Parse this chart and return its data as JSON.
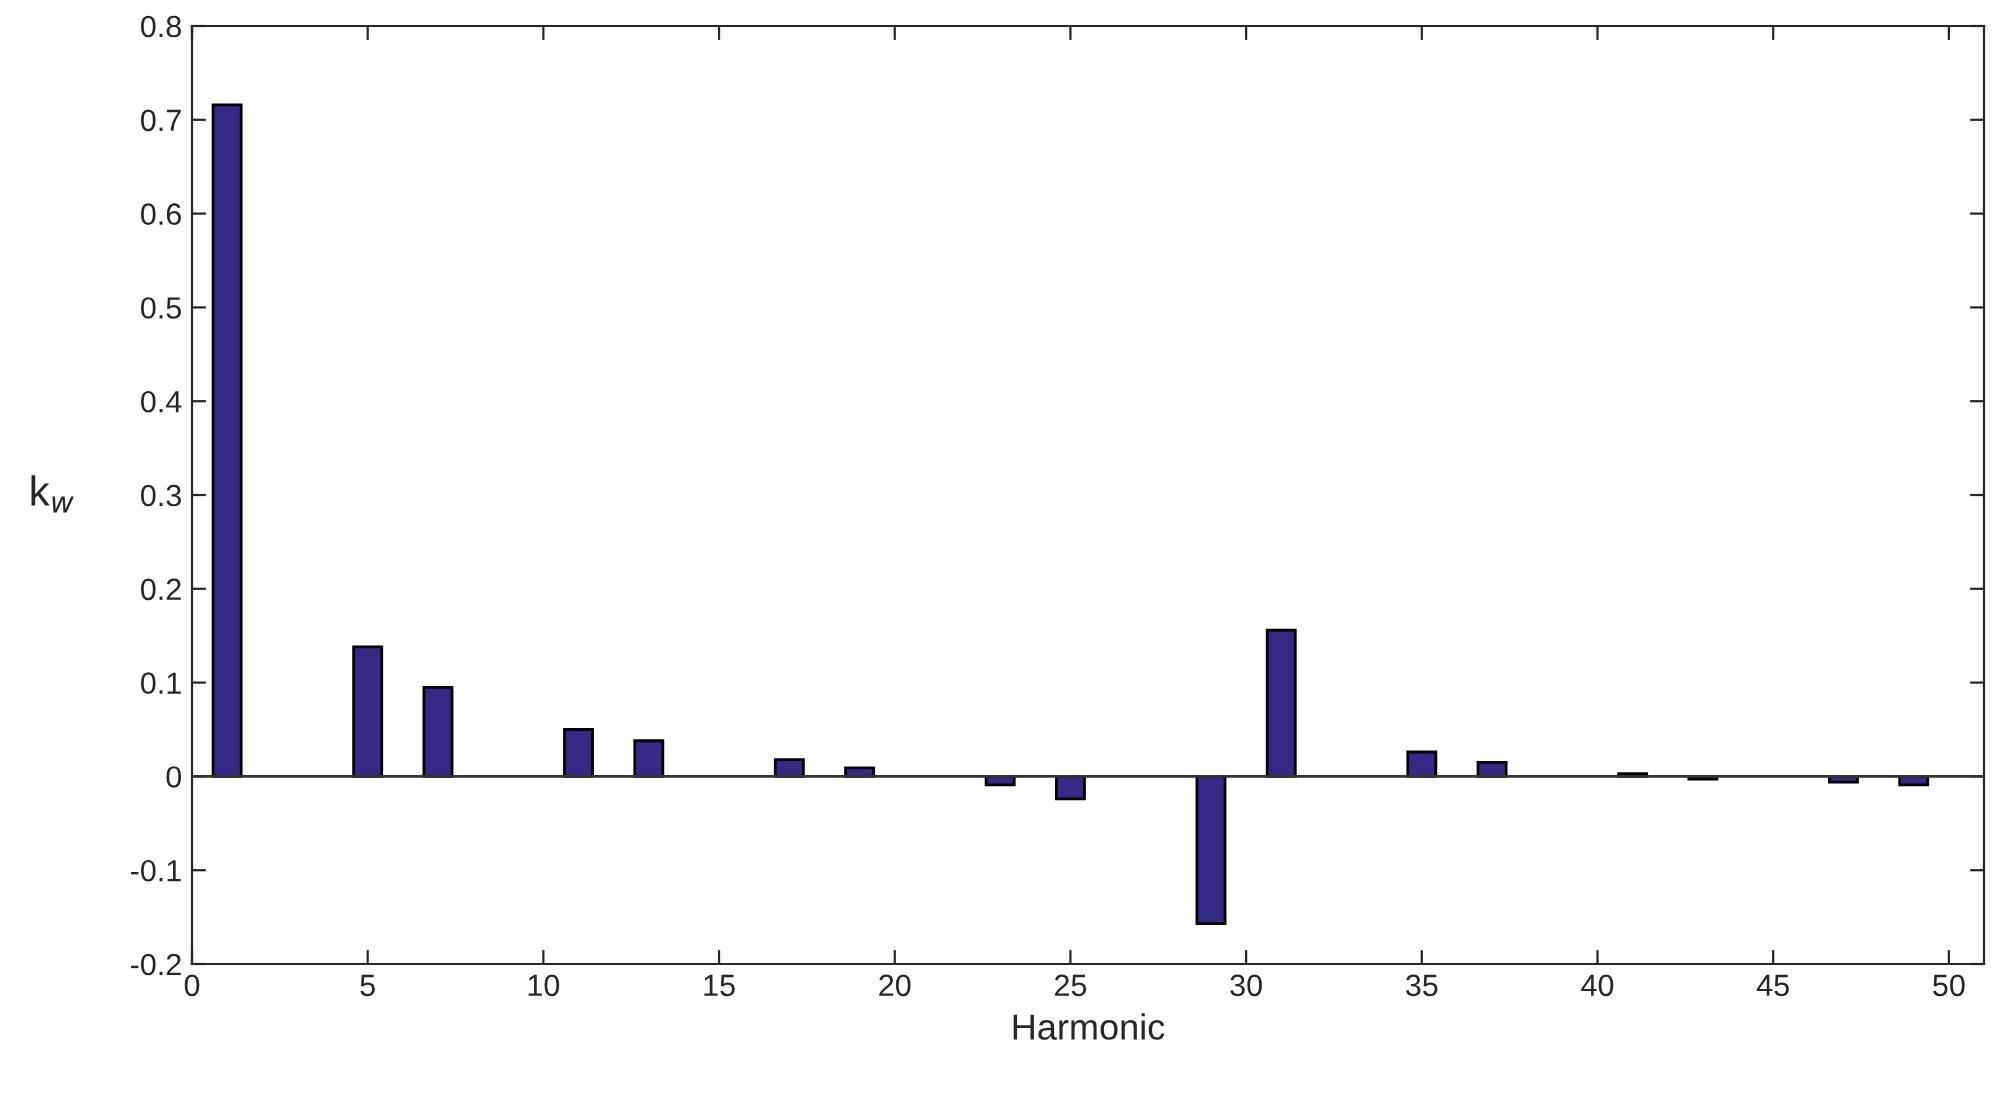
{
  "chart_data": {
    "type": "bar",
    "xlabel": "Harmonic",
    "ylabel": "k$_{w}$",
    "x": [
      1,
      5,
      7,
      11,
      13,
      17,
      19,
      23,
      25,
      29,
      31,
      35,
      37,
      41,
      43,
      47,
      49
    ],
    "series": [
      {
        "color": "#332a86",
        "values": [
          0.716,
          0.138,
          0.095,
          0.05,
          0.038,
          0.018,
          0.009,
          -0.009,
          -0.024,
          -0.157,
          0.156,
          0.026,
          0.015,
          0.003,
          -0.003,
          -0.006,
          -0.009
        ]
      }
    ],
    "xlim": [
      0,
      51
    ],
    "xticks": [
      0,
      5,
      10,
      15,
      20,
      25,
      30,
      35,
      40,
      45,
      50
    ],
    "ylim": [
      -0.2,
      0.8
    ],
    "yticks": [
      -0.2,
      -0.1,
      0,
      0.1,
      0.2,
      0.3,
      0.4,
      0.5,
      0.6,
      0.7,
      0.8
    ],
    "ref_lines": [
      {
        "axis": "y",
        "value": 0,
        "color": "#333333"
      }
    ]
  }
}
